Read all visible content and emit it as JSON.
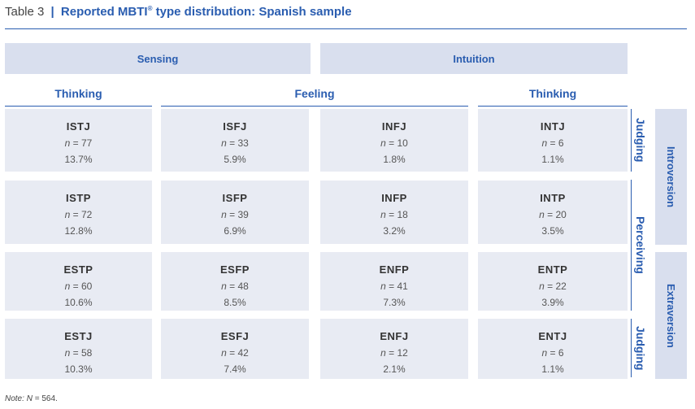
{
  "title": {
    "table_number": "Table 3",
    "separator": "|",
    "text_before_sup": "Reported MBTI",
    "sup_mark": "®",
    "text_after_sup": " type distribution: Spanish sample"
  },
  "headers": {
    "sensing": "Sensing",
    "intuition": "Intuition",
    "thinking_left": "Thinking",
    "feeling": "Feeling",
    "thinking_right": "Thinking"
  },
  "side_labels": {
    "judging_top": "Judging",
    "perceiving": "Perceiving",
    "judging_bottom": "Judging",
    "introversion": "Introversion",
    "extraversion": "Extraversion"
  },
  "n_prefix": "n",
  "n_separator": " = ",
  "rows": [
    [
      {
        "type": "ISTJ",
        "n": "77",
        "pct": "13.7%"
      },
      {
        "type": "ISFJ",
        "n": "33",
        "pct": "5.9%"
      },
      {
        "type": "INFJ",
        "n": "10",
        "pct": "1.8%"
      },
      {
        "type": "INTJ",
        "n": "6",
        "pct": "1.1%"
      }
    ],
    [
      {
        "type": "ISTP",
        "n": "72",
        "pct": "12.8%"
      },
      {
        "type": "ISFP",
        "n": "39",
        "pct": "6.9%"
      },
      {
        "type": "INFP",
        "n": "18",
        "pct": "3.2%"
      },
      {
        "type": "INTP",
        "n": "20",
        "pct": "3.5%"
      }
    ],
    [
      {
        "type": "ESTP",
        "n": "60",
        "pct": "10.6%"
      },
      {
        "type": "ESFP",
        "n": "48",
        "pct": "8.5%"
      },
      {
        "type": "ENFP",
        "n": "41",
        "pct": "7.3%"
      },
      {
        "type": "ENTP",
        "n": "22",
        "pct": "3.9%"
      }
    ],
    [
      {
        "type": "ESTJ",
        "n": "58",
        "pct": "10.3%"
      },
      {
        "type": "ESFJ",
        "n": "42",
        "pct": "7.4%"
      },
      {
        "type": "ENFJ",
        "n": "12",
        "pct": "2.1%"
      },
      {
        "type": "ENTJ",
        "n": "6",
        "pct": "1.1%"
      }
    ]
  ],
  "note": {
    "label": "Note:",
    "n_var": "N",
    "n_rest": " = 564."
  },
  "colors": {
    "accent": "#2a5db0",
    "header_fill": "#d9dfee",
    "cell_fill": "#e8ebf3"
  }
}
